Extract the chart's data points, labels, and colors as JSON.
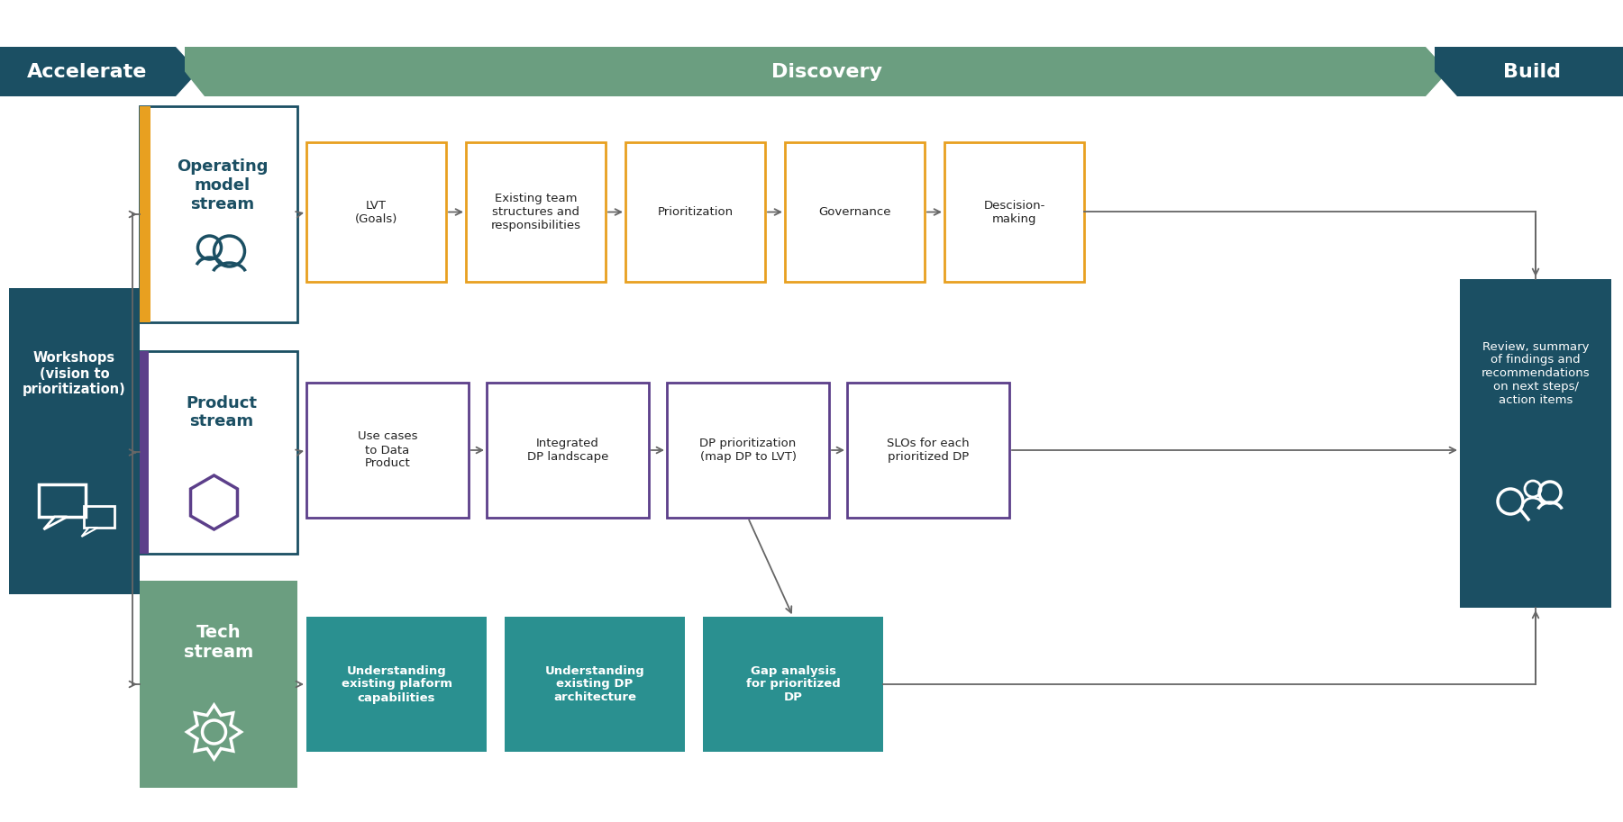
{
  "bg_color": "#ffffff",
  "header_dark_teal": "#1b4f63",
  "header_green": "#6b9e80",
  "stream_label_teal": "#1b4f63",
  "workshops_box_color": "#1b4f63",
  "review_box_color": "#1b4f63",
  "op_stream_box_border": "#1b4f63",
  "op_stream_accent": "#e8a020",
  "op_stream_item_border": "#e8a020",
  "product_stream_box_border": "#1b4f63",
  "product_stream_accent": "#5c3f8a",
  "product_stream_item_border": "#5c3f8a",
  "tech_stream_box_fill": "#6b9e80",
  "tech_stream_item_fill": "#2a9090",
  "arrow_color": "#666666",
  "text_dark": "#222222",
  "text_white": "#ffffff",
  "workshops_text": "Workshops\n(vision to\nprioritization)",
  "review_text": "Review, summary\nof findings and\nrecommendations\non next steps/\naction items",
  "op_stream_title": "Operating\nmodel\nstream",
  "op_stream_items": [
    "LVT\n(Goals)",
    "Existing team\nstructures and\nresponsibilities",
    "Prioritization",
    "Governance",
    "Descision-\nmaking"
  ],
  "product_stream_title": "Product\nstream",
  "product_stream_items": [
    "Use cases\nto Data\nProduct",
    "Integrated\nDP landscape",
    "DP prioritization\n(map DP to LVT)",
    "SLOs for each\nprioritized DP"
  ],
  "tech_stream_title": "Tech\nstream",
  "tech_stream_items": [
    "Understanding\nexisting plaform\ncapabilities",
    "Understanding\nexisting DP\narchitecture",
    "Gap analysis\nfor prioritized\nDP"
  ]
}
